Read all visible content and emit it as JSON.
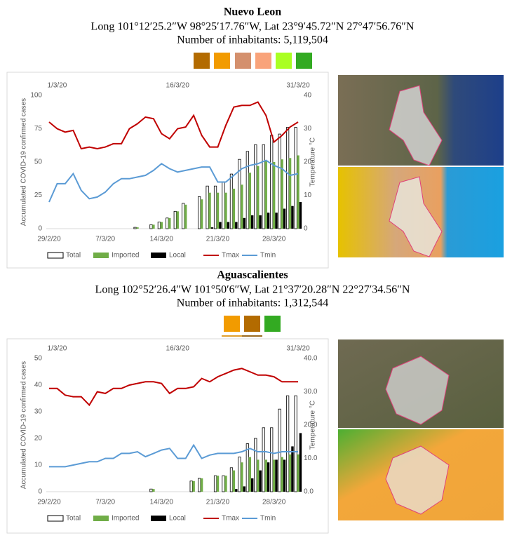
{
  "chart_data": [
    {
      "type": "bar",
      "title": "Nuevo Leon",
      "subtitle": "Long 101°12′25.2″W 98°25′17.76″W, Lat 23°9′45.72″N 27°47′56.76″N",
      "note": "Number of inhabitants: 5,119,504",
      "ylabel": "Accumulated COVID-19 confirmed cases",
      "y2label": "Temperature °C",
      "categories": [
        "29/2/20",
        null,
        null,
        null,
        null,
        null,
        null,
        "7/3/20",
        null,
        null,
        null,
        null,
        null,
        null,
        "14/3/20",
        null,
        null,
        null,
        null,
        null,
        null,
        "21/3/20",
        null,
        null,
        null,
        null,
        null,
        null,
        "28/3/20",
        null,
        null,
        null
      ],
      "top_labels": [
        null,
        "1/3/20",
        null,
        null,
        null,
        null,
        null,
        null,
        null,
        null,
        null,
        null,
        null,
        null,
        null,
        null,
        "16/3/20",
        null,
        null,
        null,
        null,
        null,
        null,
        null,
        null,
        null,
        null,
        null,
        null,
        null,
        null,
        "31/3/20"
      ],
      "ylim": [
        0,
        100
      ],
      "yticks": [
        0,
        25,
        50,
        75,
        100
      ],
      "y2lim": [
        0,
        40
      ],
      "y2ticks": [
        0,
        10,
        20,
        30,
        40
      ],
      "series": [
        {
          "name": "Total",
          "color": "#ffffff",
          "edgecolor": "#000000",
          "values": [
            0,
            0,
            0,
            0,
            0,
            0,
            0,
            0,
            0,
            0,
            0,
            1,
            0,
            3,
            5,
            8,
            13,
            19,
            0,
            24,
            32,
            32,
            35,
            41,
            52,
            58,
            63,
            63,
            70,
            71,
            76,
            76
          ]
        },
        {
          "name": "Imported",
          "color": "#70ad47",
          "values": [
            0,
            0,
            0,
            0,
            0,
            0,
            0,
            0,
            0,
            0,
            0,
            1,
            0,
            3,
            5,
            8,
            13,
            18,
            0,
            22,
            27,
            27,
            27,
            30,
            33,
            42,
            47,
            51,
            50,
            52,
            53,
            55
          ]
        },
        {
          "name": "Local",
          "color": "#000000",
          "values": [
            0,
            0,
            0,
            0,
            0,
            0,
            0,
            0,
            0,
            0,
            0,
            0,
            0,
            0,
            0,
            0,
            0,
            0,
            0,
            0,
            1,
            5,
            5,
            5,
            8,
            10,
            10,
            12,
            12,
            15,
            17,
            20
          ]
        },
        {
          "name": "Tmax",
          "color": "#c00000",
          "type": "line",
          "axis": "y2",
          "values": [
            32,
            30,
            29,
            29.5,
            24,
            24.5,
            24,
            24.5,
            25.5,
            25.5,
            30,
            31.5,
            33.5,
            33,
            28.5,
            27,
            30,
            30.5,
            34,
            28,
            24.5,
            24.5,
            31,
            36.5,
            37,
            37,
            38,
            34,
            26,
            28,
            30.5,
            32
          ]
        },
        {
          "name": "Tmin",
          "color": "#5b9bd5",
          "type": "line",
          "axis": "y2",
          "values": [
            8,
            13.5,
            13.5,
            16.5,
            11.5,
            9,
            9.5,
            11,
            13.5,
            15,
            15,
            15.5,
            16,
            17.5,
            19.5,
            18,
            17,
            17.5,
            18,
            18.5,
            18.5,
            14,
            14,
            16,
            18,
            19,
            19.5,
            20.5,
            19,
            18,
            16,
            16.5
          ]
        }
      ]
    },
    {
      "type": "bar",
      "title": "Aguascalientes",
      "subtitle": "Long 102°52′26.4″W 101°50′6″W, Lat 21°37′20.28″N 22°27′34.56″N",
      "note": "Number of inhabitants: 1,312,544",
      "ylabel": "Accumulated COVID-19 confirmed cases",
      "y2label": "Temperature °C",
      "categories": [
        "29/2/20",
        null,
        null,
        null,
        null,
        null,
        null,
        "7/3/20",
        null,
        null,
        null,
        null,
        null,
        null,
        "14/3/20",
        null,
        null,
        null,
        null,
        null,
        null,
        "21/3/20",
        null,
        null,
        null,
        null,
        null,
        null,
        "28/3/20",
        null,
        null,
        null
      ],
      "top_labels": [
        null,
        "1/3/20",
        null,
        null,
        null,
        null,
        null,
        null,
        null,
        null,
        null,
        null,
        null,
        null,
        null,
        null,
        "16/3/20",
        null,
        null,
        null,
        null,
        null,
        null,
        null,
        null,
        null,
        null,
        null,
        null,
        null,
        null,
        "31/3/20"
      ],
      "ylim": [
        0,
        50
      ],
      "yticks": [
        0,
        10,
        20,
        30,
        40,
        50
      ],
      "y2lim": [
        0,
        40
      ],
      "y2ticks": [
        {
          "value": 0,
          "label": "0.0"
        },
        {
          "value": 10,
          "label": "10.0"
        },
        {
          "value": 20,
          "label": "20.0"
        },
        {
          "value": 30,
          "label": "30.0"
        },
        {
          "value": 40,
          "label": "40.0"
        }
      ],
      "series": [
        {
          "name": "Total",
          "color": "#ffffff",
          "edgecolor": "#000000",
          "values": [
            0,
            0,
            0,
            0,
            0,
            0,
            0,
            0,
            0,
            0,
            0,
            0,
            0,
            1,
            0,
            0,
            0,
            0,
            4,
            5,
            0,
            6,
            6,
            9,
            13,
            18,
            20,
            24,
            24,
            31,
            36,
            36
          ]
        },
        {
          "name": "Imported",
          "color": "#70ad47",
          "values": [
            0,
            0,
            0,
            0,
            0,
            0,
            0,
            0,
            0,
            0,
            0,
            0,
            0,
            1,
            0,
            0,
            0,
            0,
            4,
            5,
            0,
            6,
            6,
            8,
            11,
            13,
            12,
            12,
            12,
            13,
            14,
            14
          ]
        },
        {
          "name": "Local",
          "color": "#000000",
          "values": [
            0,
            0,
            0,
            0,
            0,
            0,
            0,
            0,
            0,
            0,
            0,
            0,
            0,
            0,
            0,
            0,
            0,
            0,
            0,
            0,
            0,
            0,
            0,
            1,
            2,
            5,
            8,
            11,
            12,
            12,
            17,
            22
          ]
        },
        {
          "name": "Tmax",
          "color": "#c00000",
          "type": "line",
          "axis": "y2",
          "values": [
            31,
            31,
            29,
            28.5,
            28.5,
            26,
            30,
            29.5,
            31,
            31,
            32,
            32.5,
            33,
            33,
            32.5,
            29.5,
            31,
            31,
            31.5,
            34,
            33,
            34.5,
            35.5,
            36.5,
            37,
            36,
            35,
            35,
            34.5,
            33,
            33,
            33
          ]
        },
        {
          "name": "Tmin",
          "color": "#5b9bd5",
          "type": "line",
          "axis": "y2",
          "values": [
            7.5,
            7.5,
            7.5,
            8,
            8.5,
            9,
            9,
            10,
            10,
            11.5,
            11.5,
            12,
            10.5,
            11.5,
            12.5,
            13,
            10,
            10,
            14,
            10,
            11,
            11.5,
            11.5,
            11.5,
            12,
            13,
            12,
            12,
            11.5,
            12,
            12,
            12
          ]
        }
      ]
    }
  ]
}
